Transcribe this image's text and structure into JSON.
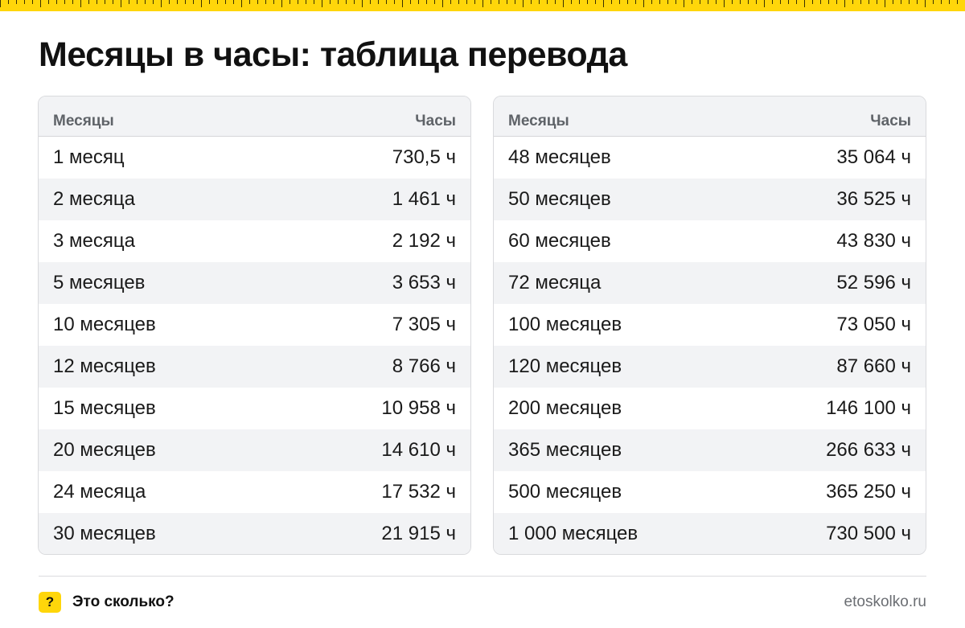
{
  "title": "Месяцы в часы: таблица перевода",
  "tables": [
    {
      "header": {
        "col1": "Месяцы",
        "col2": "Часы"
      },
      "rows": [
        {
          "months": "1 месяц",
          "hours": "730,5 ч"
        },
        {
          "months": "2 месяца",
          "hours": "1 461 ч"
        },
        {
          "months": "3 месяца",
          "hours": "2 192 ч"
        },
        {
          "months": "5 месяцев",
          "hours": "3 653 ч"
        },
        {
          "months": "10 месяцев",
          "hours": "7 305 ч"
        },
        {
          "months": "12 месяцев",
          "hours": "8 766 ч"
        },
        {
          "months": "15 месяцев",
          "hours": "10 958 ч"
        },
        {
          "months": "20 месяцев",
          "hours": "14 610 ч"
        },
        {
          "months": "24 месяца",
          "hours": "17 532 ч"
        },
        {
          "months": "30 месяцев",
          "hours": "21 915 ч"
        }
      ]
    },
    {
      "header": {
        "col1": "Месяцы",
        "col2": "Часы"
      },
      "rows": [
        {
          "months": "48 месяцев",
          "hours": "35 064 ч"
        },
        {
          "months": "50 месяцев",
          "hours": "36 525 ч"
        },
        {
          "months": "60 месяцев",
          "hours": "43 830 ч"
        },
        {
          "months": "72 месяца",
          "hours": "52 596 ч"
        },
        {
          "months": "100 месяцев",
          "hours": "73 050 ч"
        },
        {
          "months": "120 месяцев",
          "hours": "87 660 ч"
        },
        {
          "months": "200 месяцев",
          "hours": "146 100 ч"
        },
        {
          "months": "365 месяцев",
          "hours": "266 633 ч"
        },
        {
          "months": "500 месяцев",
          "hours": "365 250 ч"
        },
        {
          "months": "1 000 месяцев",
          "hours": "730 500 ч"
        }
      ]
    }
  ],
  "footer": {
    "icon_glyph": "?",
    "brand": "Это сколько?",
    "site": "etoskolko.ru"
  },
  "colors": {
    "accent": "#ffd60a",
    "row_alt": "#f2f3f5",
    "header_text": "#5f6368"
  }
}
